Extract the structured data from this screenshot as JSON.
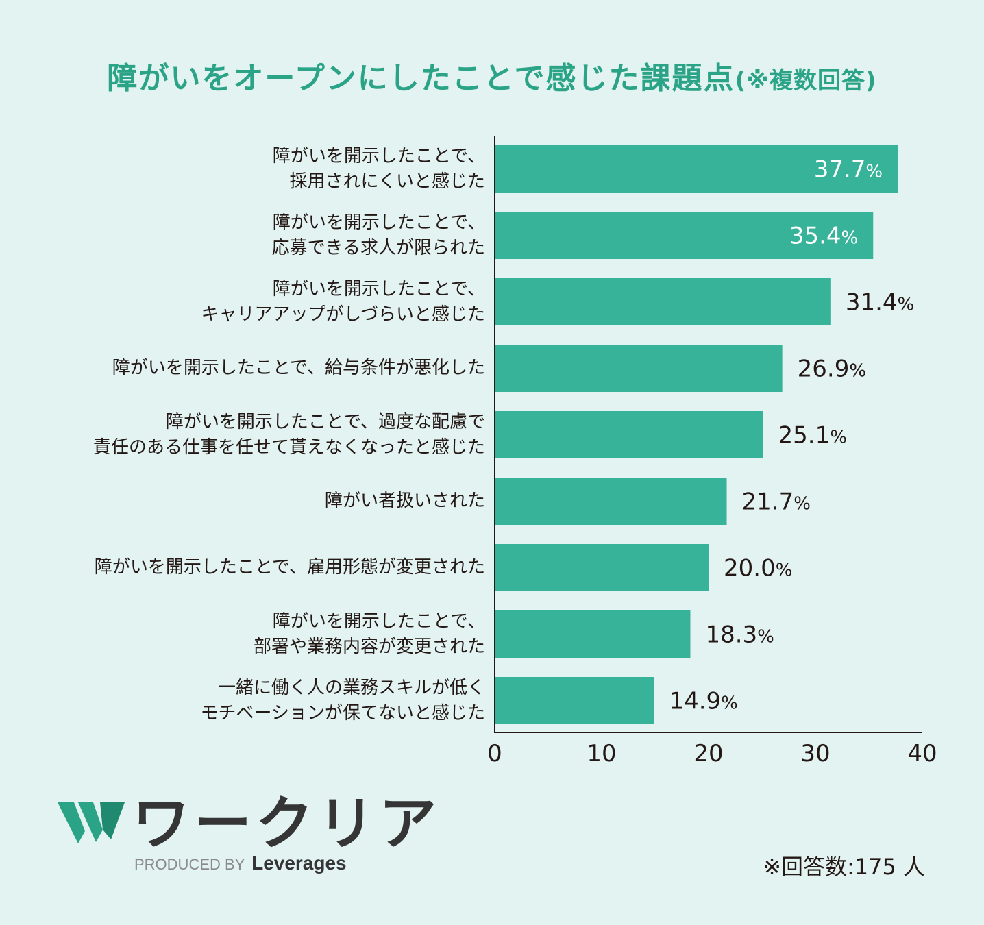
{
  "header": {
    "title": "障がいをオープンにしたことで感じた課題点",
    "subtitle": "(※複数回答)"
  },
  "chart_data": {
    "type": "bar",
    "orientation": "horizontal",
    "title": "障がいをオープンにしたことで感じた課題点(※複数回答)",
    "categories": [
      [
        "障がいを開示したことで、",
        "採用されにくいと感じた"
      ],
      [
        "障がいを開示したことで、",
        "応募できる求人が限られた"
      ],
      [
        "障がいを開示したことで、",
        "キャリアアップがしづらいと感じた"
      ],
      [
        "障がいを開示したことで、給与条件が悪化した"
      ],
      [
        "障がいを開示したことで、過度な配慮で",
        "責任のある仕事を任せて貰えなくなったと感じた"
      ],
      [
        "障がい者扱いされた"
      ],
      [
        "障がいを開示したことで、雇用形態が変更された"
      ],
      [
        "障がいを開示したことで、",
        "部署や業務内容が変更された"
      ],
      [
        "一緒に働く人の業務スキルが低く",
        "モチベーションが保てないと感じた"
      ]
    ],
    "values": [
      37.7,
      35.4,
      31.4,
      26.9,
      25.1,
      21.7,
      20.0,
      18.3,
      14.9
    ],
    "value_labels": [
      "37.7",
      "35.4",
      "31.4",
      "26.9",
      "25.1",
      "21.7",
      "20.0",
      "18.3",
      "14.9"
    ],
    "value_suffix": "%",
    "xlim": [
      0,
      40
    ],
    "xticks": [
      0,
      10,
      20,
      30,
      40
    ],
    "xtick_labels": [
      "0",
      "10",
      "20",
      "30",
      "40"
    ],
    "bar_color": "#37b399",
    "grid": false,
    "legend": "none"
  },
  "brand": {
    "logo_text": "ワークリア",
    "produced_by": "PRODUCED BY",
    "company": "Leverages",
    "accent": "#2aa386"
  },
  "footer": {
    "note": "※回答数:175 人"
  }
}
